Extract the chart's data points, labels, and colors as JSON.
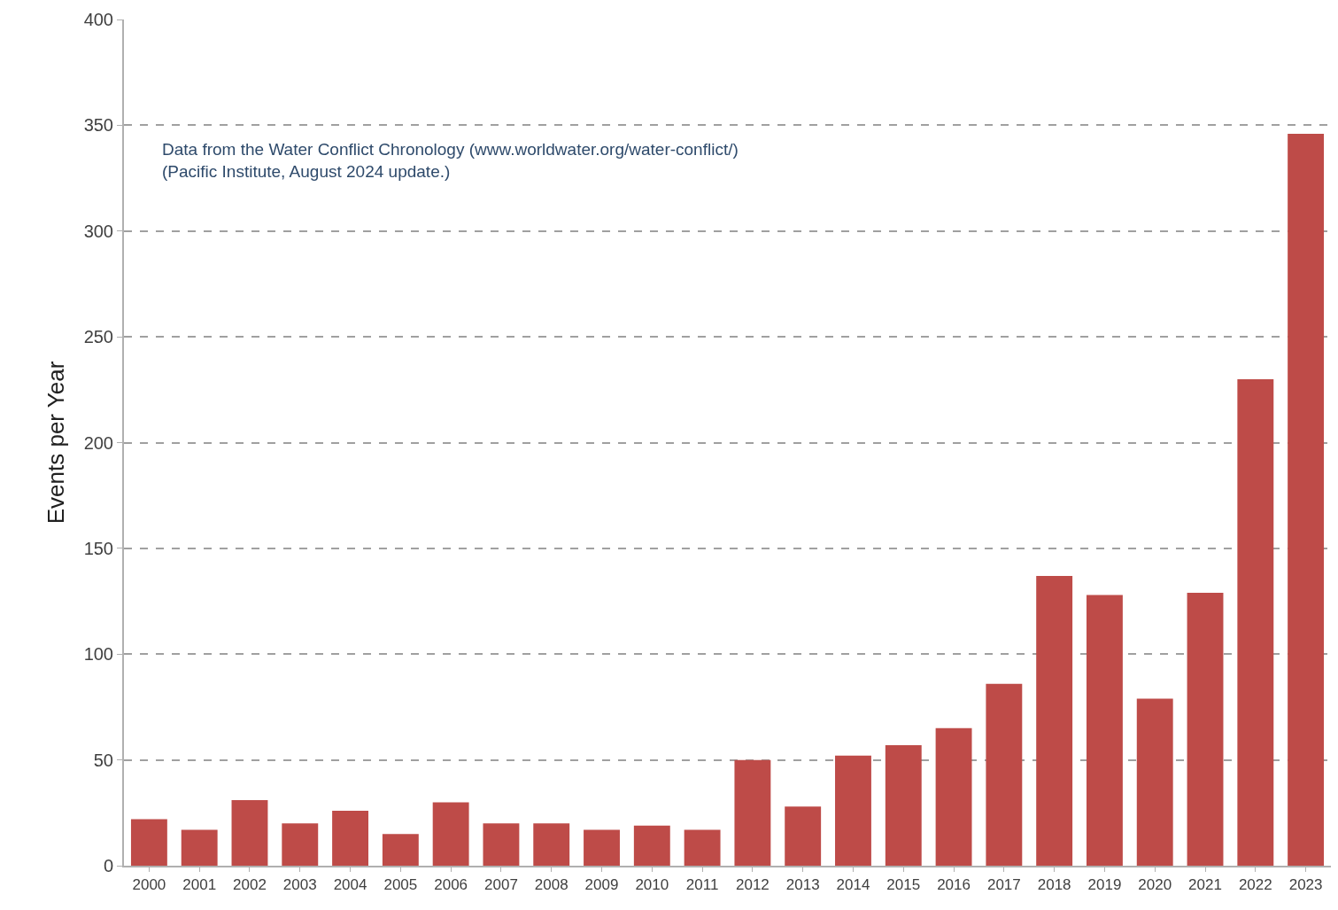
{
  "chart_data": {
    "type": "bar",
    "ylabel": "Events per Year",
    "categories": [
      "2000",
      "2001",
      "2002",
      "2003",
      "2004",
      "2005",
      "2006",
      "2007",
      "2008",
      "2009",
      "2010",
      "2011",
      "2012",
      "2013",
      "2014",
      "2015",
      "2016",
      "2017",
      "2018",
      "2019",
      "2020",
      "2021",
      "2022",
      "2023"
    ],
    "values": [
      22,
      17,
      31,
      20,
      26,
      15,
      30,
      20,
      20,
      17,
      19,
      17,
      50,
      28,
      52,
      57,
      65,
      86,
      137,
      128,
      79,
      129,
      230,
      346
    ],
    "color": "#be4b48",
    "ylim": [
      0,
      400
    ],
    "yticks": [
      0,
      50,
      100,
      150,
      200,
      250,
      300,
      350,
      400
    ],
    "grid": "y",
    "annotations": [
      "Data from the Water Conflict Chronology (www.worldwater.org/water-conflict/)\n(Pacific Institute, August 2024 update.)"
    ]
  }
}
